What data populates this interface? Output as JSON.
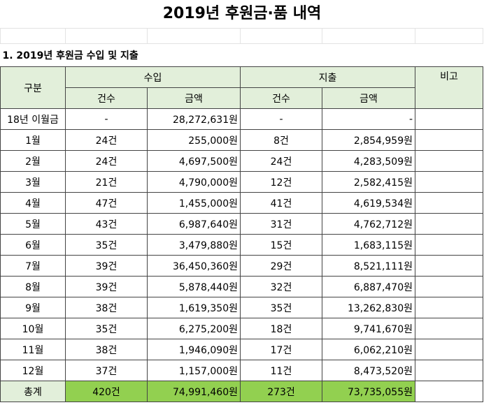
{
  "title": "2019년 후원금·품 내역",
  "section": "1. 2019년 후원금 수입 및 지출",
  "table": {
    "header": {
      "category": "구분",
      "income": "수입",
      "expense": "지출",
      "note": "비고",
      "sub": [
        "건수",
        "금액",
        "건수",
        "금액"
      ]
    },
    "rows": [
      [
        "18년 이월금",
        "-",
        "28,272,631원",
        "-",
        "-"
      ],
      [
        "1월",
        "24건",
        "255,000원",
        "8건",
        "2,854,959원"
      ],
      [
        "2월",
        "24건",
        "4,697,500원",
        "24건",
        "4,283,509원"
      ],
      [
        "3월",
        "21건",
        "4,790,000원",
        "12건",
        "2,582,415원"
      ],
      [
        "4월",
        "47건",
        "1,455,000원",
        "41건",
        "4,619,534원"
      ],
      [
        "5월",
        "43건",
        "6,987,640원",
        "31건",
        "4,762,712원"
      ],
      [
        "6월",
        "35건",
        "3,479,880원",
        "15건",
        "1,683,115원"
      ],
      [
        "7월",
        "39건",
        "36,450,360원",
        "29건",
        "8,521,111원"
      ],
      [
        "8월",
        "39건",
        "5,878,440원",
        "32건",
        "6,887,470원"
      ],
      [
        "9월",
        "38건",
        "1,619,350원",
        "35건",
        "13,262,830원"
      ],
      [
        "10월",
        "35건",
        "6,275,200원",
        "18건",
        "9,741,670원"
      ],
      [
        "11월",
        "38건",
        "1,946,090원",
        "17건",
        "6,062,210원"
      ],
      [
        "12월",
        "37건",
        "1,157,000원",
        "11건",
        "8,473,520원"
      ],
      [
        "총계",
        "420건",
        "74,991,460원",
        "273건",
        "73,735,055원"
      ]
    ]
  }
}
